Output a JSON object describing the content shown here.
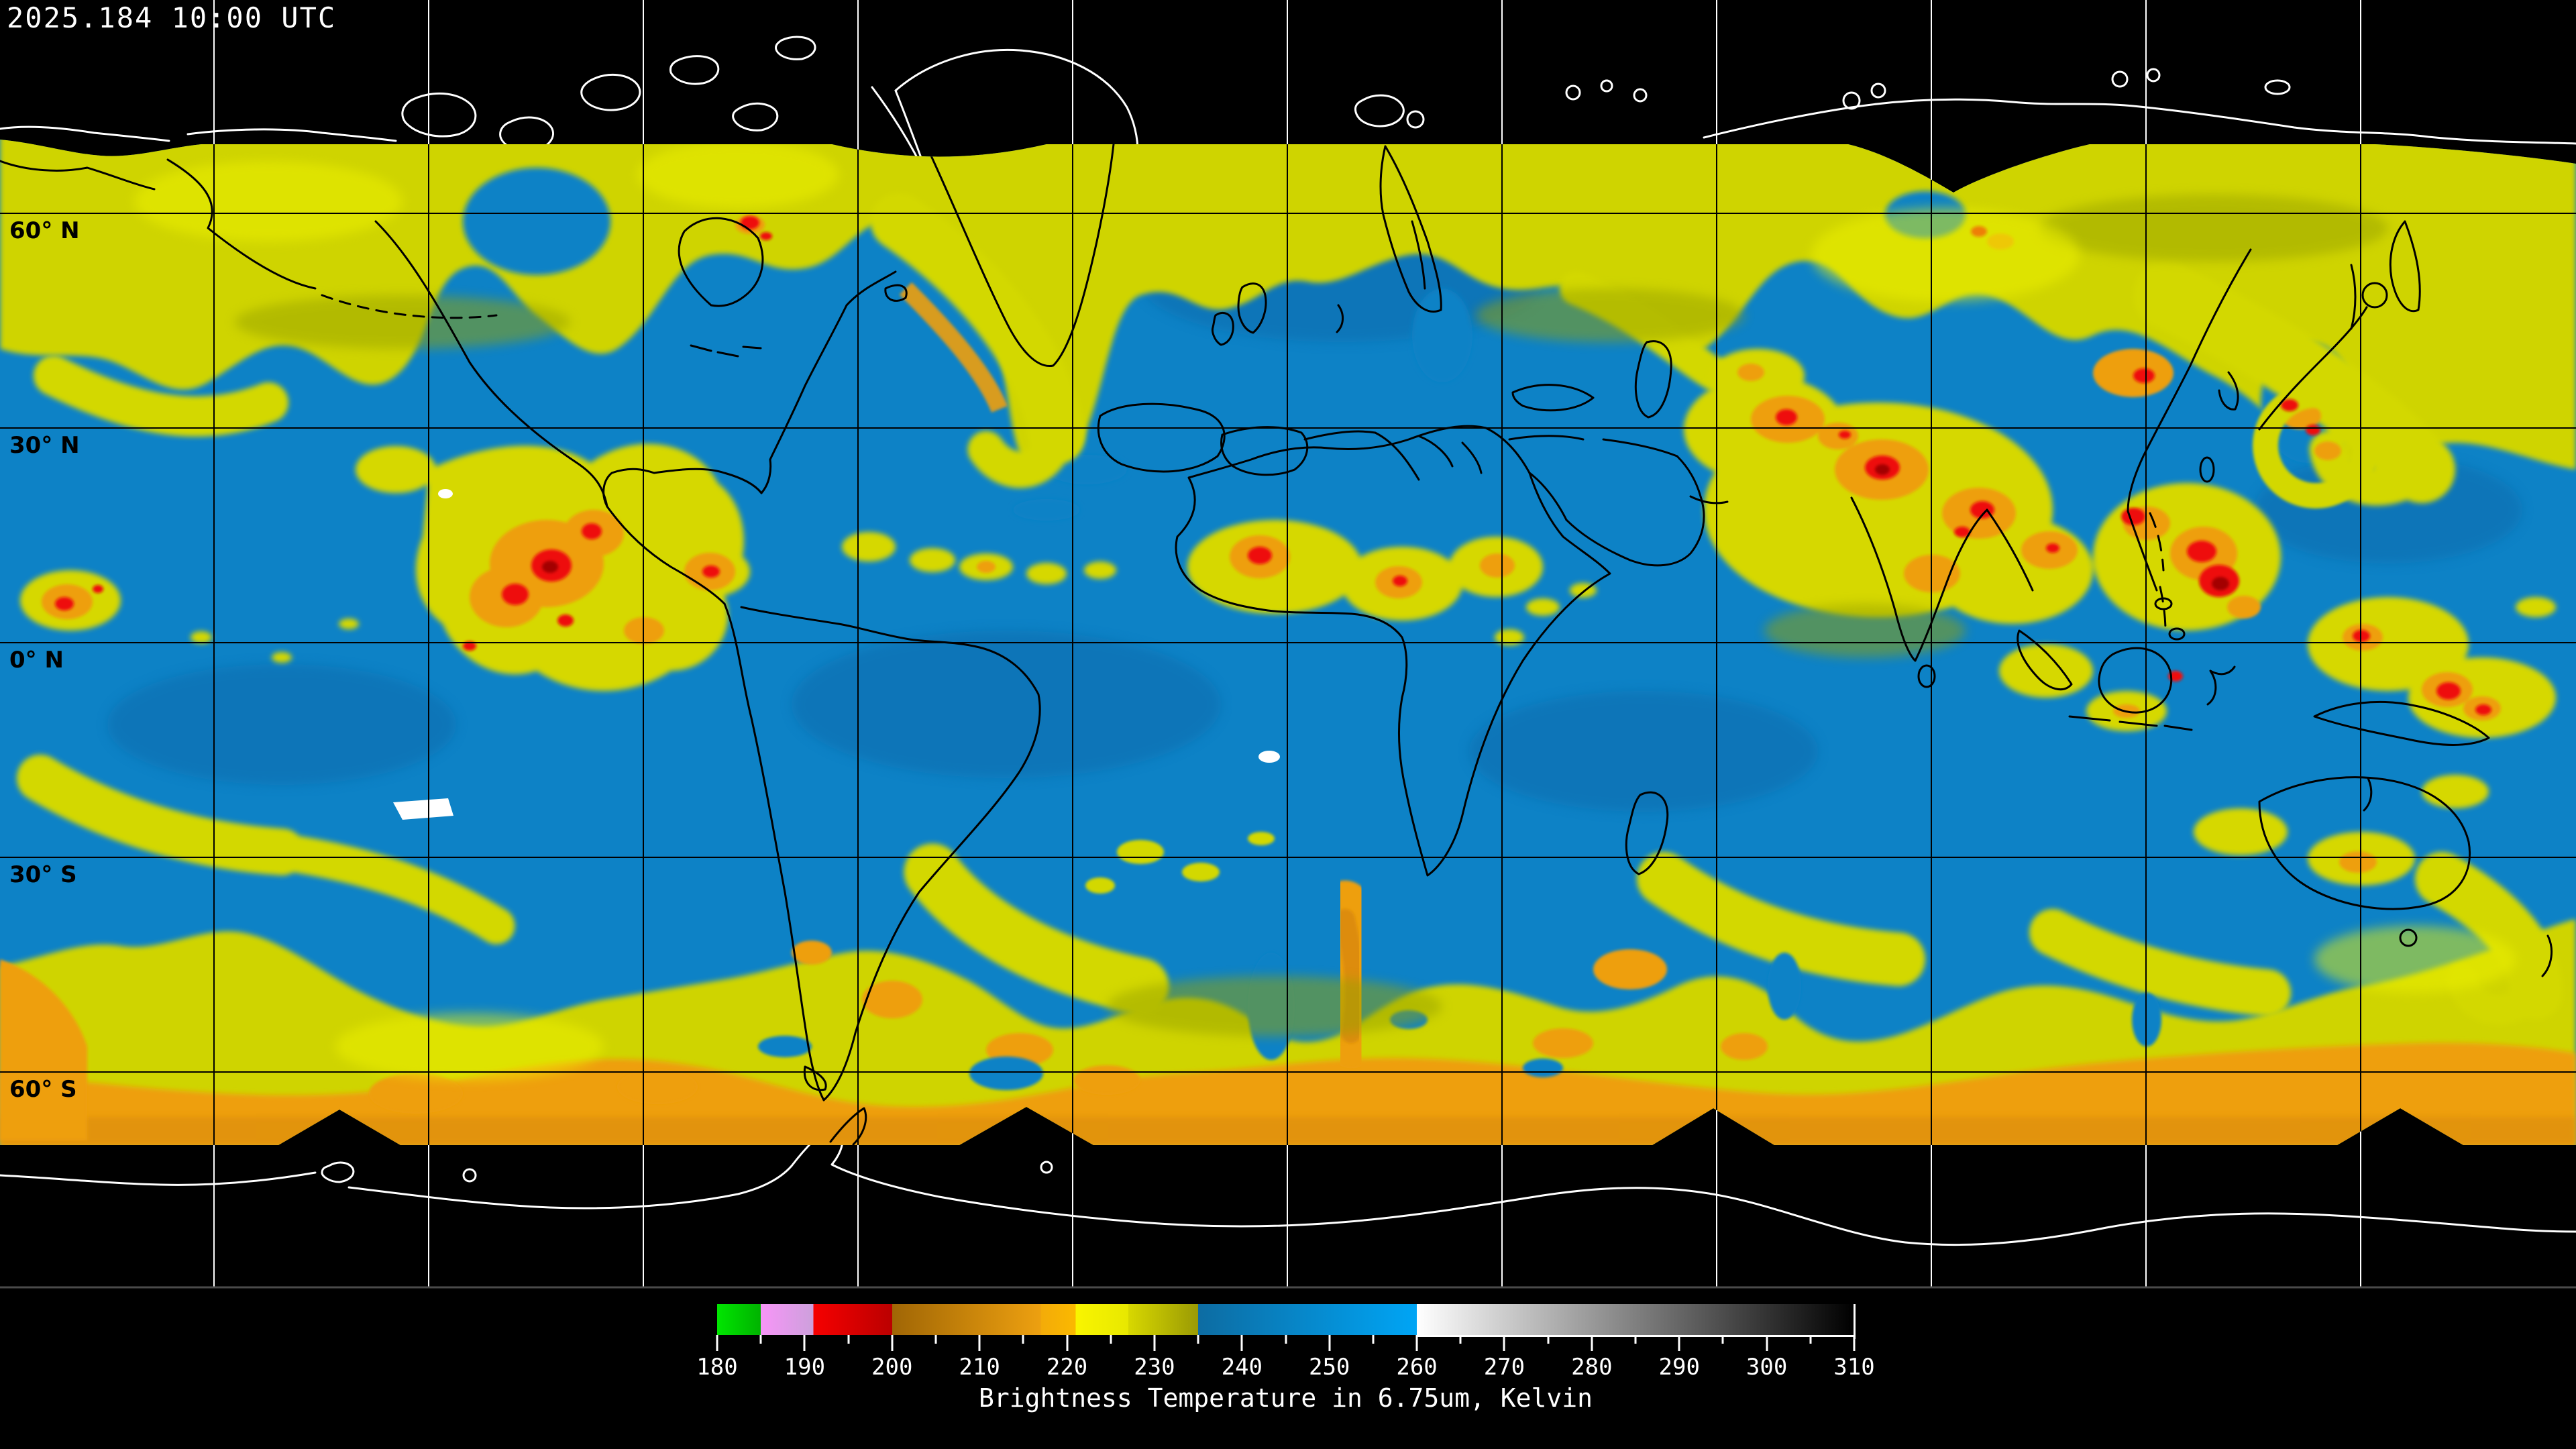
{
  "header": {
    "timestamp": "2025.184 10:00 UTC"
  },
  "map": {
    "latitude_labels": [
      {
        "text": "60° N"
      },
      {
        "text": "30° N"
      },
      {
        "text": "0° N"
      },
      {
        "text": "30° S"
      },
      {
        "text": "60° S"
      }
    ],
    "palette": {
      "space_background": "#000000",
      "moist_upper_troposphere_blue": "#0d82c6",
      "cold_cloud_yellow": "#cfd400",
      "colder_cloud_orange": "#ee9f10",
      "coldest_overshoot_red": "#ee1010",
      "warm_clear_white": "#ffffff",
      "grid_over_data": "#000000",
      "grid_over_space": "#ffffff",
      "coastline_over_data": "#000000",
      "coastline_over_space": "#ffffff"
    }
  },
  "colorbar": {
    "title": "Brightness Temperature in 6.75um, Kelvin",
    "min": 180,
    "max": 310,
    "minor_tick_step": 5,
    "labeled_tick_step": 10,
    "tick_labels": [
      "180",
      "190",
      "200",
      "210",
      "220",
      "230",
      "240",
      "250",
      "260",
      "270",
      "280",
      "290",
      "300",
      "310"
    ],
    "white_underline_from": 260,
    "segments": [
      {
        "from": 180,
        "to": 185,
        "color_start": "#00e600",
        "color_end": "#00b200"
      },
      {
        "from": 185,
        "to": 191,
        "color_start": "#f795f7",
        "color_end": "#cda0dc"
      },
      {
        "from": 191,
        "to": 200,
        "color_start": "#f60000",
        "color_end": "#bb0000"
      },
      {
        "from": 200,
        "to": 217,
        "color_start": "#a06605",
        "color_end": "#eda010"
      },
      {
        "from": 217,
        "to": 221,
        "color_start": "#f3ab09",
        "color_end": "#fbb900"
      },
      {
        "from": 221,
        "to": 227,
        "color_start": "#f9f500",
        "color_end": "#e8e800"
      },
      {
        "from": 227,
        "to": 235,
        "color_start": "#d8d800",
        "color_end": "#9a9a04"
      },
      {
        "from": 235,
        "to": 260,
        "color_start": "#0d6ca2",
        "color_end": "#00a5f5"
      },
      {
        "from": 260,
        "to": 310,
        "color_start": "#ffffff",
        "color_end": "#000000"
      }
    ]
  }
}
